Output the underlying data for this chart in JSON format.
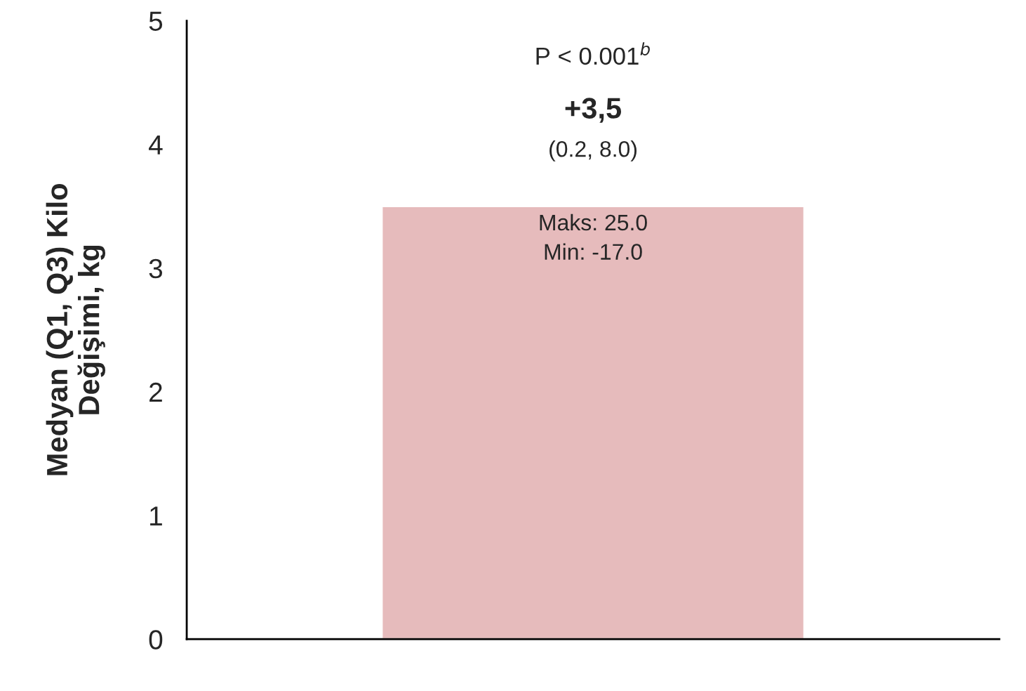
{
  "chart_data": {
    "type": "bar",
    "ylabel": "Medyan (Q1, Q3) Kilo\nDeğişimi, kg",
    "categories": [
      null
    ],
    "values": [
      3.5
    ],
    "color": "#e6bbbc",
    "value_labels": [
      "+3,5"
    ],
    "ylim": [
      0,
      5
    ],
    "yticks": [
      0,
      1,
      2,
      3,
      4,
      5
    ],
    "grid": false,
    "annotations": [
      "P < 0.001$^{b}$",
      "(0.2, 8.0)",
      "Maks: 25.0",
      "Min: -17.0"
    ]
  }
}
